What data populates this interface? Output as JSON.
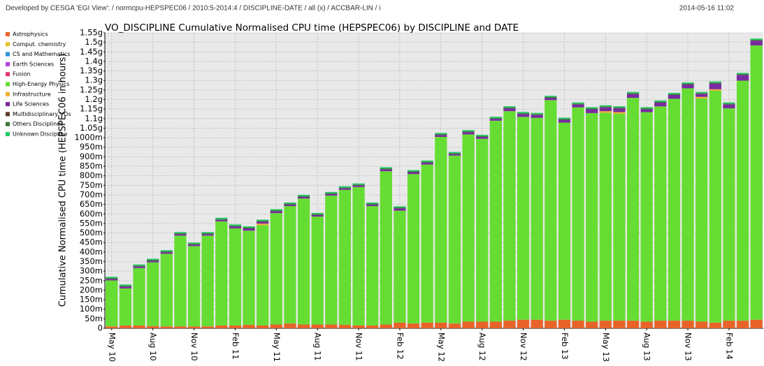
{
  "header": {
    "credits": "Developed by CESGA 'EGI View': / normcpu-HEPSPEC06 / 2010:5-2014:4 / DISCIPLINE-DATE / all (x) / ACCBAR-LIN / i",
    "timestamp": "2014-05-16 11:02"
  },
  "chart_data": {
    "type": "stacked-bar",
    "title": "VO_DISCIPLINE Cumulative Normalised CPU time (HEPSPEC06) by DISCIPLINE and DATE",
    "y_label": "Cumulative Normalised CPU time (HEPSPEC06 in hours)",
    "grid": true,
    "legend": "top-left",
    "categories": [
      "May 10",
      null,
      null,
      "Aug 10",
      null,
      null,
      "Nov 10",
      null,
      null,
      "Feb 11",
      null,
      null,
      "May 11",
      null,
      null,
      "Aug 11",
      null,
      null,
      "Nov 11",
      null,
      null,
      "Feb 12",
      null,
      null,
      "May 12",
      null,
      null,
      "Aug 12",
      null,
      null,
      "Nov 12",
      null,
      null,
      "Feb 13",
      null,
      null,
      "May 13",
      null,
      null,
      "Aug 13",
      null,
      null,
      "Nov 13",
      null,
      null,
      "Feb 14",
      null,
      null
    ],
    "ylim": [
      0,
      1550
    ],
    "yticks": [
      0,
      {
        "value": 50,
        "label": "50m"
      },
      {
        "value": 100,
        "label": "100m"
      },
      {
        "value": 150,
        "label": "150m"
      },
      {
        "value": 200,
        "label": "200m"
      },
      {
        "value": 250,
        "label": "250m"
      },
      {
        "value": 300,
        "label": "300m"
      },
      {
        "value": 350,
        "label": "350m"
      },
      {
        "value": 400,
        "label": "400m"
      },
      {
        "value": 450,
        "label": "450m"
      },
      {
        "value": 500,
        "label": "500m"
      },
      {
        "value": 550,
        "label": "550m"
      },
      {
        "value": 600,
        "label": "600m"
      },
      {
        "value": 650,
        "label": "650m"
      },
      {
        "value": 700,
        "label": "700m"
      },
      {
        "value": 750,
        "label": "750m"
      },
      {
        "value": 800,
        "label": "800m"
      },
      {
        "value": 850,
        "label": "850m"
      },
      {
        "value": 900,
        "label": "900m"
      },
      {
        "value": 950,
        "label": "950m"
      },
      {
        "value": 1000,
        "label": "1000m"
      },
      {
        "value": 1050,
        "label": "1.05g"
      },
      {
        "value": 1100,
        "label": "1.1g"
      },
      {
        "value": 1150,
        "label": "1.15g"
      },
      {
        "value": 1200,
        "label": "1.2g"
      },
      {
        "value": 1250,
        "label": "1.25g"
      },
      {
        "value": 1300,
        "label": "1.3g"
      },
      {
        "value": 1350,
        "label": "1.35g"
      },
      {
        "value": 1400,
        "label": "1.4g"
      },
      {
        "value": 1450,
        "label": "1.45g"
      },
      {
        "value": 1500,
        "label": "1.5g"
      },
      {
        "value": 1550,
        "label": "1.55g"
      }
    ],
    "series": [
      {
        "name": "Astrophysics",
        "color": "#e8632a",
        "values": [
          10,
          15,
          15,
          12,
          10,
          10,
          10,
          10,
          15,
          15,
          18,
          15,
          20,
          25,
          20,
          20,
          20,
          18,
          15,
          15,
          20,
          30,
          25,
          30,
          30,
          25,
          35,
          35,
          35,
          40,
          45,
          45,
          40,
          45,
          40,
          35,
          40,
          40,
          40,
          35,
          40,
          40,
          40,
          35,
          30,
          40,
          40,
          45
        ]
      },
      {
        "name": "Comput. chemistry",
        "color": "#e6c229",
        "values": [
          0,
          0,
          0,
          0,
          0,
          0,
          0,
          0,
          0,
          0,
          0,
          0,
          0,
          0,
          0,
          0,
          0,
          0,
          0,
          0,
          0,
          0,
          0,
          0,
          0,
          0,
          0,
          0,
          0,
          0,
          0,
          0,
          0,
          0,
          0,
          0,
          0,
          0,
          0,
          0,
          0,
          0,
          0,
          0,
          0,
          0,
          0,
          0
        ]
      },
      {
        "name": "CS and Mathematics",
        "color": "#2f8fd8",
        "values": [
          0,
          0,
          0,
          0,
          0,
          0,
          0,
          0,
          0,
          0,
          0,
          0,
          0,
          0,
          0,
          0,
          0,
          0,
          0,
          0,
          0,
          0,
          0,
          0,
          0,
          0,
          0,
          0,
          0,
          0,
          0,
          0,
          0,
          0,
          0,
          0,
          0,
          0,
          0,
          0,
          0,
          0,
          0,
          0,
          0,
          0,
          0,
          0
        ]
      },
      {
        "name": "Earth Sciences",
        "color": "#b43fe0",
        "values": [
          0,
          0,
          0,
          0,
          0,
          0,
          0,
          0,
          0,
          0,
          0,
          0,
          0,
          0,
          0,
          0,
          0,
          0,
          0,
          0,
          0,
          0,
          0,
          0,
          0,
          0,
          0,
          0,
          0,
          0,
          0,
          0,
          0,
          0,
          0,
          0,
          0,
          0,
          0,
          0,
          0,
          0,
          0,
          0,
          0,
          0,
          0,
          0
        ]
      },
      {
        "name": "Fusion",
        "color": "#e0357a",
        "values": [
          0,
          0,
          0,
          0,
          0,
          0,
          0,
          0,
          0,
          0,
          0,
          0,
          0,
          0,
          0,
          0,
          0,
          0,
          0,
          0,
          0,
          0,
          0,
          0,
          0,
          0,
          0,
          0,
          0,
          0,
          0,
          0,
          0,
          0,
          0,
          0,
          0,
          0,
          0,
          0,
          0,
          0,
          0,
          0,
          0,
          0,
          0,
          0
        ]
      },
      {
        "name": "High-Energy Physics",
        "color": "#66dd33",
        "values": [
          241,
          194,
          301,
          334,
          381,
          476,
          421,
          476,
          546,
          509,
          494,
          526,
          584,
          616,
          661,
          566,
          676,
          708,
          726,
          626,
          804,
          587,
          784,
          829,
          974,
          881,
          982,
          959,
          1054,
          1099,
          1064,
          1059,
          1157,
          1034,
          1119,
          1094,
          1091,
          1086,
          1169,
          1099,
          1124,
          1164,
          1219,
          1171,
          1216,
          1114,
          1259,
          1439
        ]
      },
      {
        "name": "Infrastructure",
        "color": "#f0b030",
        "values": [
          0,
          0,
          0,
          0,
          0,
          0,
          0,
          0,
          0,
          0,
          0,
          8,
          0,
          0,
          0,
          0,
          0,
          0,
          0,
          0,
          0,
          0,
          0,
          0,
          0,
          0,
          0,
          0,
          0,
          0,
          0,
          0,
          0,
          0,
          0,
          0,
          8,
          8,
          0,
          0,
          0,
          0,
          0,
          8,
          8,
          0,
          0,
          0
        ]
      },
      {
        "name": "Life Sciences",
        "color": "#7a2aa0",
        "values": [
          8,
          10,
          8,
          8,
          8,
          8,
          8,
          8,
          8,
          10,
          12,
          10,
          10,
          8,
          8,
          8,
          8,
          8,
          8,
          8,
          10,
          12,
          10,
          10,
          10,
          8,
          12,
          10,
          10,
          15,
          15,
          15,
          12,
          15,
          15,
          20,
          20,
          20,
          20,
          15,
          20,
          20,
          20,
          15,
          30,
          20,
          30,
          25
        ]
      },
      {
        "name": "Multidisciplinary VOs",
        "color": "#5a3a2a",
        "values": [
          0,
          0,
          0,
          0,
          0,
          0,
          0,
          0,
          0,
          0,
          0,
          0,
          0,
          0,
          0,
          0,
          0,
          0,
          0,
          0,
          0,
          0,
          0,
          0,
          0,
          0,
          0,
          0,
          0,
          0,
          0,
          0,
          0,
          0,
          0,
          0,
          0,
          0,
          0,
          0,
          0,
          0,
          0,
          0,
          0,
          0,
          0,
          0
        ]
      },
      {
        "name": "Others Disciplines",
        "color": "#3a7a3a",
        "values": [
          5,
          5,
          5,
          5,
          5,
          5,
          5,
          5,
          5,
          5,
          5,
          5,
          5,
          5,
          5,
          5,
          5,
          5,
          5,
          5,
          5,
          5,
          5,
          5,
          5,
          5,
          5,
          5,
          5,
          5,
          5,
          5,
          5,
          5,
          5,
          5,
          5,
          5,
          5,
          5,
          5,
          5,
          5,
          5,
          5,
          5,
          5,
          5
        ]
      },
      {
        "name": "Unknown Discipline",
        "color": "#22cc66",
        "values": [
          6,
          6,
          6,
          6,
          6,
          6,
          6,
          6,
          6,
          6,
          6,
          6,
          6,
          6,
          6,
          6,
          6,
          6,
          6,
          6,
          6,
          6,
          6,
          6,
          6,
          6,
          6,
          6,
          6,
          6,
          6,
          6,
          6,
          6,
          6,
          6,
          6,
          6,
          6,
          6,
          6,
          6,
          6,
          6,
          6,
          6,
          6,
          6
        ]
      }
    ]
  }
}
